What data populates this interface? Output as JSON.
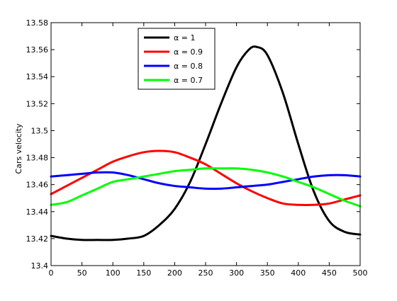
{
  "window": {
    "background": "#ffffff"
  },
  "chart_data": {
    "type": "line",
    "title": "",
    "xlabel": "",
    "ylabel": "Cars velocity",
    "xlim": [
      0,
      500
    ],
    "ylim": [
      13.4,
      13.58
    ],
    "xticks": [
      0,
      50,
      100,
      150,
      200,
      250,
      300,
      350,
      400,
      450,
      500
    ],
    "xtick_labels": [
      "0",
      "50",
      "100",
      "150",
      "200",
      "250",
      "300",
      "350",
      "400",
      "450",
      "500"
    ],
    "yticks": [
      13.4,
      13.42,
      13.44,
      13.46,
      13.48,
      13.5,
      13.52,
      13.54,
      13.56,
      13.58
    ],
    "ytick_labels": [
      "13.4",
      "13.42",
      "13.44",
      "13.46",
      "13.48",
      "13.5",
      "13.52",
      "13.54",
      "13.56",
      "13.58"
    ],
    "grid": false,
    "legend_position": "top-left inside",
    "series": [
      {
        "name": "α = 1",
        "color": "#000000",
        "x": [
          0,
          25,
          50,
          75,
          100,
          125,
          150,
          175,
          200,
          225,
          250,
          275,
          300,
          320,
          333,
          350,
          375,
          400,
          425,
          450,
          475,
          500
        ],
        "y": [
          13.422,
          13.42,
          13.419,
          13.419,
          13.419,
          13.42,
          13.422,
          13.43,
          13.442,
          13.462,
          13.49,
          13.52,
          13.547,
          13.56,
          13.562,
          13.556,
          13.528,
          13.49,
          13.455,
          13.433,
          13.425,
          13.423
        ]
      },
      {
        "name": "α = 0.9",
        "color": "#ff0000",
        "x": [
          0,
          25,
          50,
          75,
          100,
          125,
          150,
          175,
          200,
          225,
          250,
          275,
          300,
          325,
          350,
          375,
          400,
          425,
          450,
          475,
          500
        ],
        "y": [
          13.453,
          13.459,
          13.465,
          13.471,
          13.477,
          13.481,
          13.484,
          13.485,
          13.484,
          13.48,
          13.475,
          13.468,
          13.461,
          13.455,
          13.45,
          13.446,
          13.445,
          13.445,
          13.446,
          13.449,
          13.452
        ]
      },
      {
        "name": "α = 0.8",
        "color": "#0000ff",
        "x": [
          0,
          25,
          50,
          75,
          100,
          125,
          150,
          175,
          200,
          225,
          250,
          275,
          300,
          325,
          350,
          375,
          400,
          425,
          450,
          475,
          500
        ],
        "y": [
          13.466,
          13.467,
          13.468,
          13.469,
          13.469,
          13.467,
          13.464,
          13.461,
          13.459,
          13.458,
          13.457,
          13.457,
          13.458,
          13.459,
          13.46,
          13.462,
          13.464,
          13.466,
          13.467,
          13.467,
          13.466
        ]
      },
      {
        "name": "α = 0.7",
        "color": "#00ff00",
        "x": [
          0,
          25,
          50,
          75,
          100,
          125,
          150,
          175,
          200,
          225,
          250,
          275,
          300,
          325,
          350,
          375,
          400,
          425,
          450,
          475,
          500
        ],
        "y": [
          13.445,
          13.447,
          13.452,
          13.457,
          13.462,
          13.464,
          13.466,
          13.468,
          13.47,
          13.471,
          13.472,
          13.472,
          13.472,
          13.471,
          13.469,
          13.466,
          13.462,
          13.458,
          13.453,
          13.448,
          13.444
        ]
      }
    ]
  }
}
